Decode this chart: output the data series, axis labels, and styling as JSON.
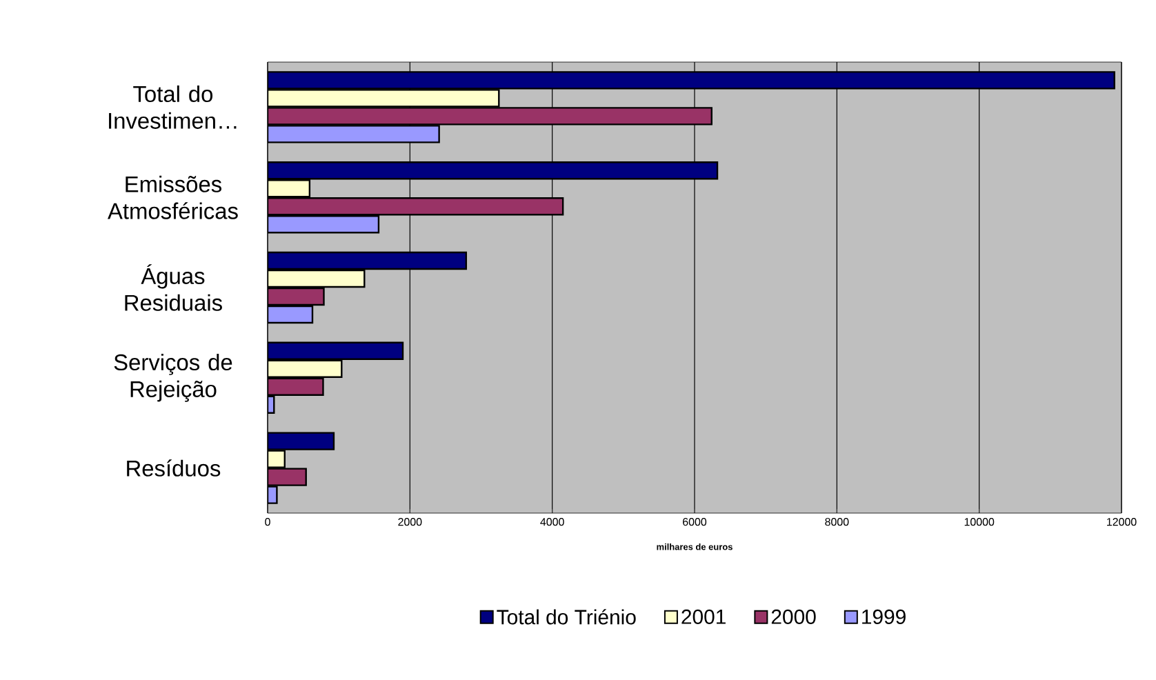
{
  "chart_data": {
    "type": "bar",
    "orientation": "horizontal",
    "xlabel": "milhares de euros",
    "categories": [
      "Total do Investimen…",
      "Emissões Atmosféricas",
      "Águas Residuais",
      "Serviços de Rejeição",
      "Resíduos"
    ],
    "series": [
      {
        "name": "Total do Triénio",
        "color": "#000080",
        "values": [
          11900,
          6320,
          2790,
          1900,
          930
        ]
      },
      {
        "name": "2001",
        "color": "#ffffcc",
        "values": [
          3250,
          590,
          1360,
          1040,
          240
        ]
      },
      {
        "name": "2000",
        "color": "#993366",
        "values": [
          6240,
          4150,
          790,
          780,
          540
        ]
      },
      {
        "name": "1999",
        "color": "#9999ff",
        "values": [
          2410,
          1560,
          630,
          90,
          130
        ]
      }
    ],
    "xlim": [
      0,
      12000
    ],
    "xticks": [
      0,
      2000,
      4000,
      6000,
      8000,
      10000,
      12000
    ],
    "grid": "x",
    "legend": "bottom"
  }
}
